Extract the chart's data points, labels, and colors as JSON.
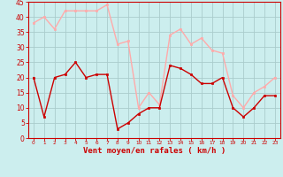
{
  "hours": [
    0,
    1,
    2,
    3,
    4,
    5,
    6,
    7,
    8,
    9,
    10,
    11,
    12,
    13,
    14,
    15,
    16,
    17,
    18,
    19,
    20,
    21,
    22,
    23
  ],
  "wind_avg": [
    20,
    7,
    20,
    21,
    25,
    20,
    21,
    21,
    3,
    5,
    8,
    10,
    10,
    24,
    23,
    21,
    18,
    18,
    20,
    10,
    7,
    10,
    14,
    14
  ],
  "wind_gust": [
    38,
    40,
    36,
    42,
    42,
    42,
    42,
    44,
    31,
    32,
    10,
    15,
    11,
    34,
    36,
    31,
    33,
    29,
    28,
    14,
    10,
    15,
    17,
    20
  ],
  "avg_color": "#cc0000",
  "gust_color": "#ffaaaa",
  "bg_color": "#cceeee",
  "grid_color": "#aacccc",
  "xlabel": "Vent moyen/en rafales ( km/h )",
  "ylim": [
    0,
    45
  ],
  "yticks": [
    0,
    5,
    10,
    15,
    20,
    25,
    30,
    35,
    40,
    45
  ],
  "xlabel_color": "#cc0000",
  "axis_color": "#cc0000",
  "tick_color": "#cc0000",
  "marker_size": 2.0,
  "linewidth_avg": 1.0,
  "linewidth_gust": 1.0
}
